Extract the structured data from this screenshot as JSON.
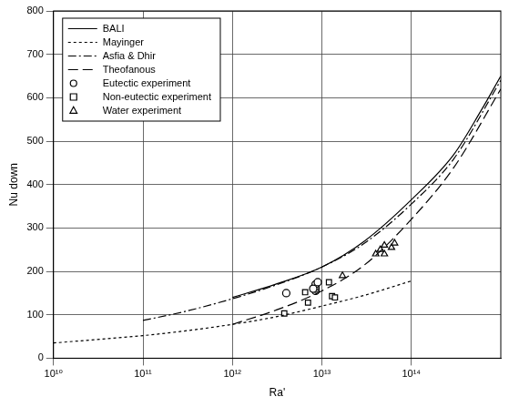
{
  "chart_data": {
    "type": "scatter",
    "xlabel": "Ra'",
    "ylabel": "Nu down",
    "log": "x",
    "grid": true,
    "legend": "top-left",
    "xlim": [
      10000000000.0,
      1000000000000000.0
    ],
    "xticks": [
      {
        "value": 10000000000.0,
        "label": "10¹⁰"
      },
      {
        "value": 100000000000.0,
        "label": "10¹¹"
      },
      {
        "value": 1000000000000.0,
        "label": "10¹²"
      },
      {
        "value": 10000000000000.0,
        "label": "10¹³"
      },
      {
        "value": 100000000000000.0,
        "label": "10¹⁴"
      }
    ],
    "ylim": [
      0,
      800
    ],
    "yticks": [
      0,
      100,
      200,
      300,
      400,
      500,
      600,
      700,
      800
    ],
    "series": [
      {
        "name": "BALI",
        "type": "line",
        "line_style": "solid",
        "color": "#000000",
        "x": [
          1000000000000.0,
          3000000000000.0,
          10000000000000.0,
          30000000000000.0,
          100000000000000.0,
          300000000000000.0,
          600000000000000.0,
          1000000000000000.0
        ],
        "values": [
          140,
          170,
          210,
          270,
          365,
          470,
          570,
          650
        ]
      },
      {
        "name": "Mayinger",
        "type": "line",
        "line_style": "dashed",
        "color": "#000000",
        "x": [
          10000000000.0,
          30000000000.0,
          100000000000.0,
          300000000000.0,
          1000000000000.0,
          3000000000000.0,
          10000000000000.0,
          30000000000000.0,
          100000000000000.0
        ],
        "values": [
          35,
          43,
          52,
          63,
          78,
          95,
          120,
          145,
          178
        ]
      },
      {
        "name": "Asfia & Dhir",
        "type": "line",
        "line_style": "dashdot",
        "color": "#000000",
        "x": [
          100000000000.0,
          300000000000.0,
          1000000000000.0,
          3000000000000.0,
          10000000000000.0,
          30000000000000.0,
          100000000000000.0,
          300000000000000.0,
          1000000000000000.0
        ],
        "values": [
          87,
          108,
          137,
          168,
          210,
          265,
          355,
          460,
          640
        ]
      },
      {
        "name": "Theofanous",
        "type": "line",
        "line_style": "longdash",
        "color": "#000000",
        "x": [
          1000000000000.0,
          3000000000000.0,
          10000000000000.0,
          30000000000000.0,
          100000000000000.0,
          300000000000000.0,
          1000000000000000.0
        ],
        "values": [
          78,
          110,
          155,
          215,
          320,
          440,
          620
        ]
      },
      {
        "name": "Eutectic experiment",
        "type": "scatter",
        "marker": "circle",
        "color": "#000000",
        "x": [
          4000000000000.0,
          8500000000000.0,
          8500000000000.0,
          8500000000000.0,
          8500000000000.0,
          9000000000000.0,
          8000000000000.0
        ],
        "values": [
          150,
          155,
          160,
          165,
          170,
          175,
          160
        ]
      },
      {
        "name": "Non-eutectic experiment",
        "type": "scatter",
        "marker": "square",
        "color": "#000000",
        "x": [
          3800000000000.0,
          6500000000000.0,
          7000000000000.0,
          12000000000000.0,
          13000000000000.0,
          14000000000000.0,
          8000000000000.0
        ],
        "values": [
          103,
          152,
          128,
          175,
          143,
          140,
          160
        ]
      },
      {
        "name": "Water experiment",
        "type": "scatter",
        "marker": "triangle",
        "color": "#000000",
        "x": [
          17000000000000.0,
          40000000000000.0,
          45000000000000.0,
          50000000000000.0,
          50000000000000.0,
          60000000000000.0,
          65000000000000.0
        ],
        "values": [
          190,
          240,
          250,
          240,
          260,
          255,
          265
        ]
      }
    ]
  }
}
